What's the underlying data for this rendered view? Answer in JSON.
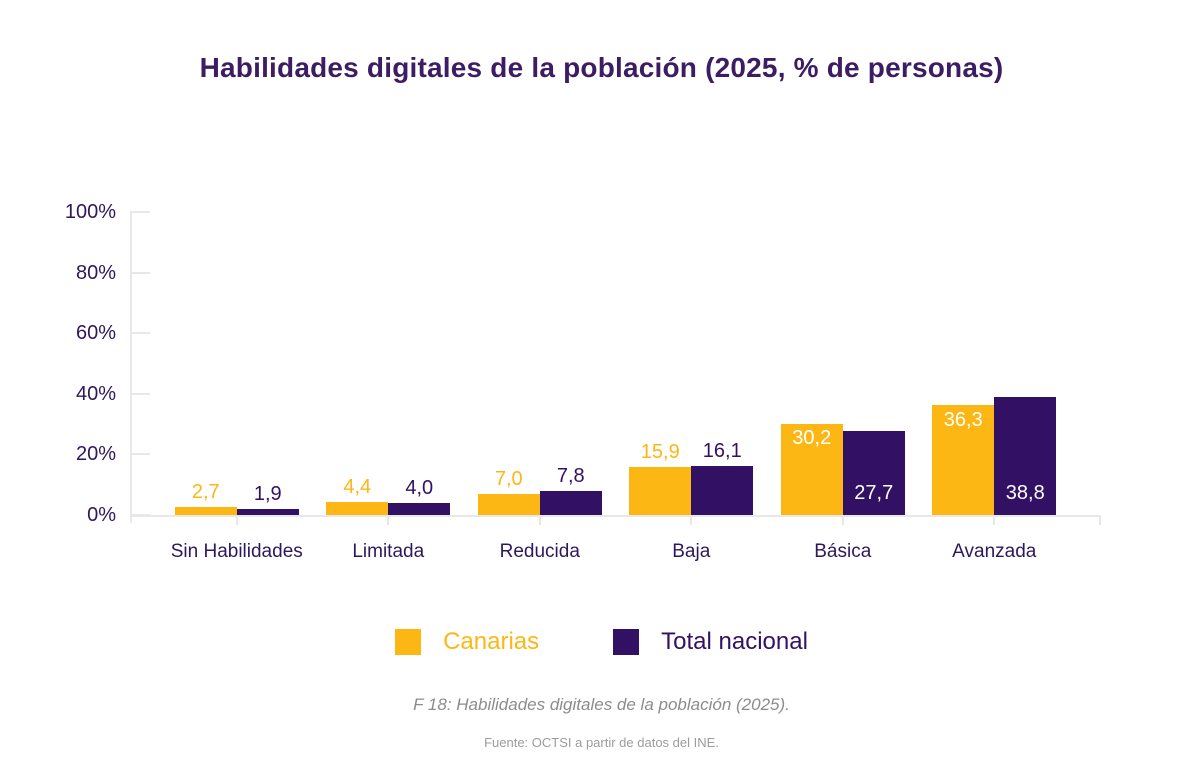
{
  "chart_data": {
    "type": "bar",
    "title": "Habilidades digitales de la población (2025, % de personas)",
    "categories": [
      "Sin Habilidades",
      "Limitada",
      "Reducida",
      "Baja",
      "Básica",
      "Avanzada"
    ],
    "series": [
      {
        "name": "Canarias",
        "color": "#FDB714",
        "values": [
          2.7,
          4.4,
          7.0,
          15.9,
          30.2,
          36.3
        ],
        "labels": [
          "2,7",
          "4,4",
          "7,0",
          "15,9",
          "30,2",
          "36,3"
        ]
      },
      {
        "name": "Total nacional",
        "color": "#321164",
        "values": [
          1.9,
          4.0,
          7.8,
          16.1,
          27.7,
          38.8
        ],
        "labels": [
          "1,9",
          "4,0",
          "7,8",
          "16,1",
          "27,7",
          "38,8"
        ]
      }
    ],
    "xlabel": "",
    "ylabel": "",
    "ylim": [
      0,
      100
    ],
    "y_ticks": [
      "0%",
      "20%",
      "40%",
      "60%",
      "80%",
      "100%"
    ],
    "grid": false,
    "legend_position": "bottom"
  },
  "caption": "F 18: Habilidades digitales de la población (2025).",
  "source": "Fuente: OCTSI a partir de datos del INE.",
  "colors": {
    "title": "#3C1D63",
    "axis_text": "#2F175C",
    "axis_line": "#E8E8E8",
    "caption": "#8C8C8C",
    "source": "#9C9C9C",
    "canarias": "#FDB714",
    "total_nacional": "#321164",
    "value_label_inside": "#FFFFFF"
  }
}
